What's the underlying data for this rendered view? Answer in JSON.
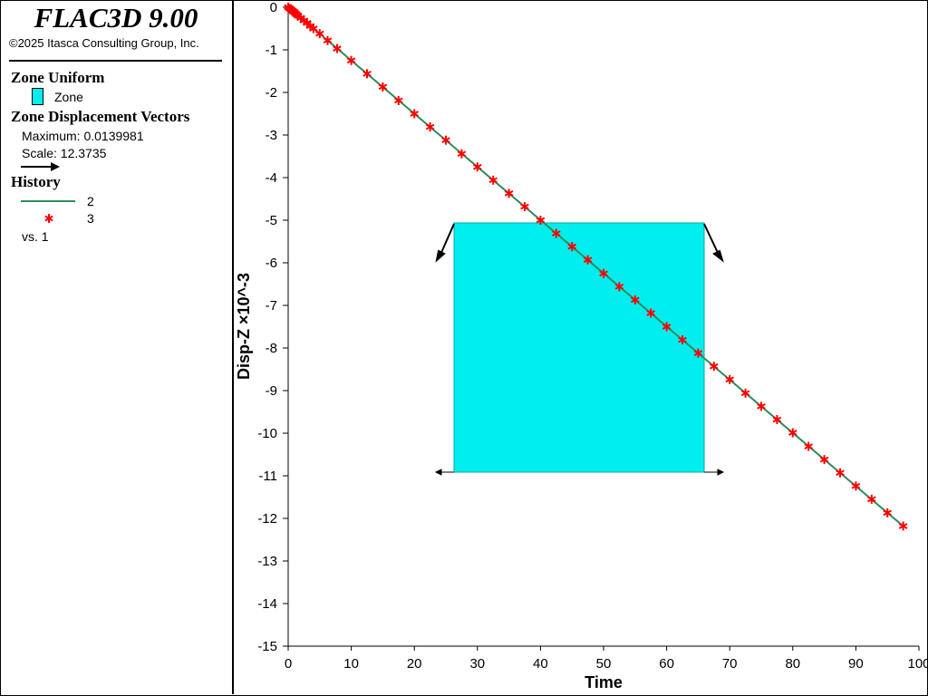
{
  "legend": {
    "app_title": "FLAC3D 9.00",
    "copyright": "©2025 Itasca Consulting Group, Inc.",
    "zone_uniform": {
      "heading": "Zone Uniform",
      "item_label": "Zone",
      "swatch_color": "#00eeee"
    },
    "zone_vectors": {
      "heading": "Zone Displacement Vectors",
      "maximum": "Maximum: 0.0139981",
      "scale": "Scale: 12.3735"
    },
    "history": {
      "heading": "History",
      "series_line_label": "2",
      "series_marker_label": "3",
      "vs_label": "vs. 1"
    }
  },
  "chart_data": {
    "type": "line",
    "xlabel": "Time",
    "ylabel": "Disp-Z ×10^-3",
    "xlim": [
      0,
      100
    ],
    "ylim": [
      -15,
      0
    ],
    "x_ticks": [
      "0",
      "10",
      "20",
      "30",
      "40",
      "50",
      "60",
      "70",
      "80",
      "90",
      "100"
    ],
    "y_ticks": [
      "0",
      "-1",
      "-2",
      "-3",
      "-4",
      "-5",
      "-6",
      "-7",
      "-8",
      "-9",
      "-10",
      "-11",
      "-12",
      "-13",
      "-14",
      "-15"
    ],
    "grid": false,
    "series": [
      {
        "name": "2",
        "style": "line",
        "color": "#2e8b57",
        "x": [
          0,
          97.5
        ],
        "y": [
          0,
          -12.18
        ]
      },
      {
        "name": "3",
        "style": "marker",
        "color": "#ff0000",
        "x": [
          0,
          0.25,
          0.5,
          0.75,
          1.0,
          1.25,
          1.5,
          2.0,
          2.5,
          3.0,
          3.5,
          4.0,
          5.0,
          6.25,
          7.75,
          10.0,
          12.5,
          15.0,
          17.5,
          20.0,
          22.5,
          25.0,
          27.5,
          30.0,
          32.5,
          35.0,
          37.5,
          40.0,
          42.5,
          45.0,
          47.5,
          50.0,
          52.5,
          55.0,
          57.5,
          60.0,
          62.5,
          65.0,
          67.5,
          70.0,
          72.5,
          75.0,
          77.5,
          80.0,
          82.5,
          85.0,
          87.5,
          90.0,
          92.5,
          95.0,
          97.5
        ],
        "y": [
          0,
          -0.03,
          -0.06,
          -0.09,
          -0.12,
          -0.16,
          -0.19,
          -0.25,
          -0.31,
          -0.37,
          -0.44,
          -0.5,
          -0.62,
          -0.78,
          -0.97,
          -1.25,
          -1.56,
          -1.87,
          -2.19,
          -2.5,
          -2.81,
          -3.12,
          -3.44,
          -3.75,
          -4.06,
          -4.37,
          -4.68,
          -5.0,
          -5.31,
          -5.62,
          -5.93,
          -6.25,
          -6.56,
          -6.87,
          -7.18,
          -7.5,
          -7.81,
          -8.12,
          -8.43,
          -8.74,
          -9.06,
          -9.37,
          -9.68,
          -9.99,
          -10.31,
          -10.62,
          -10.93,
          -11.24,
          -11.55,
          -11.87,
          -12.18
        ]
      }
    ],
    "overlay": {
      "label": "zone model overlay (drawn in plot space)",
      "color": "#00eeee"
    }
  }
}
